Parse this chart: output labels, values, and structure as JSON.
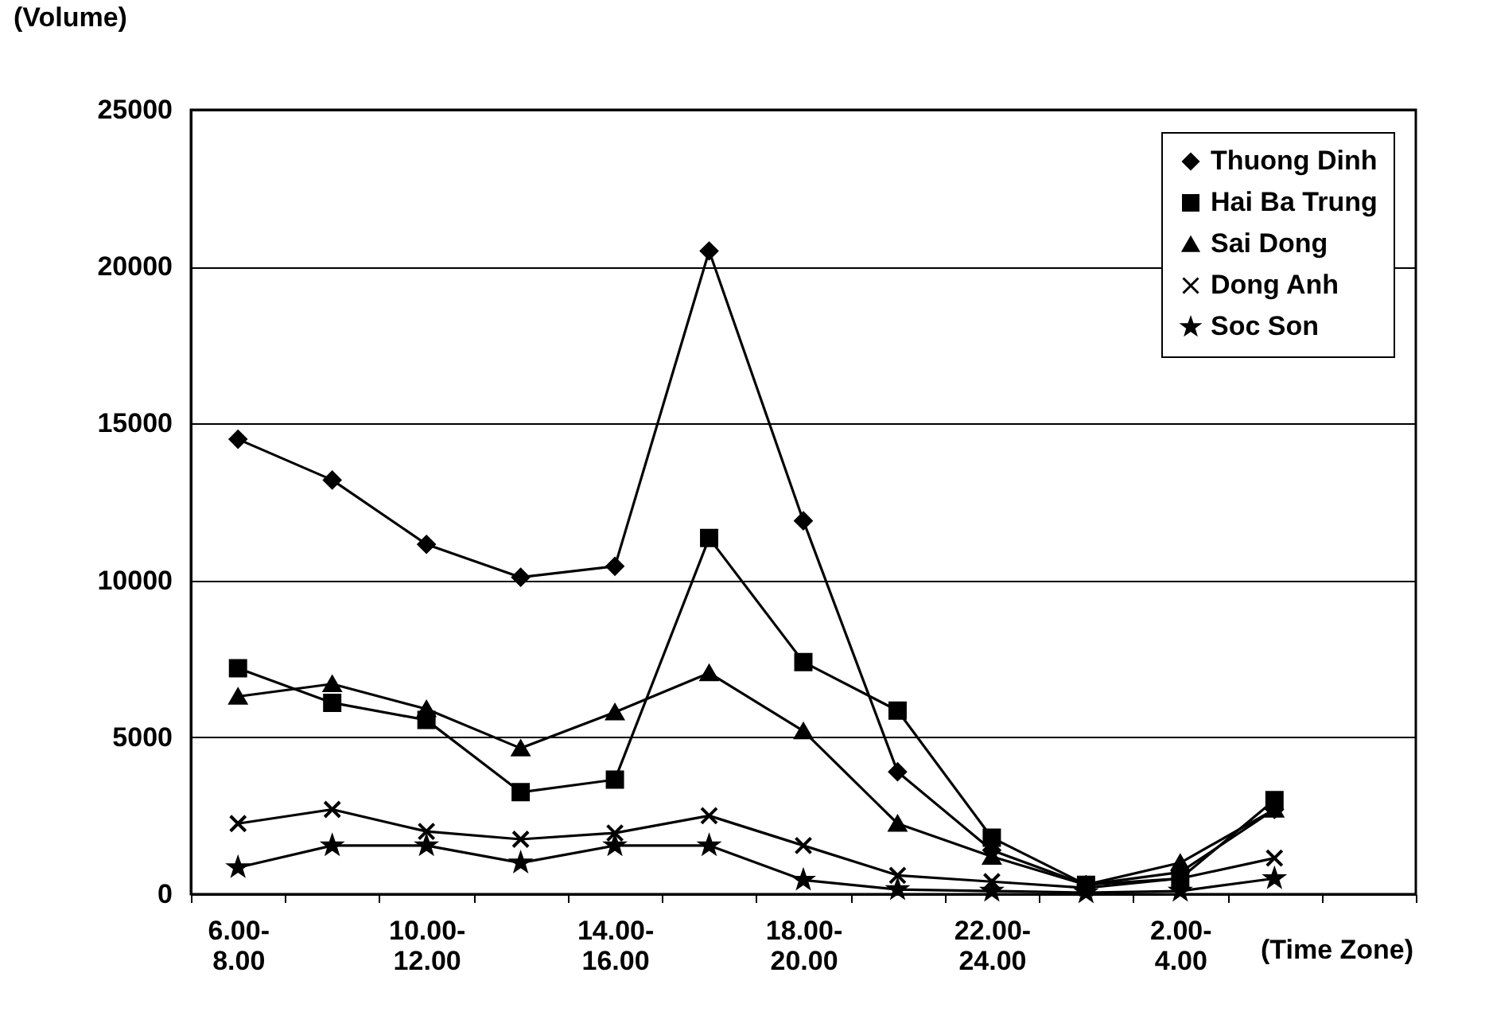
{
  "chart_data": {
    "type": "line",
    "xlabel": "(Time Zone)",
    "ylabel": "(Volume)",
    "categories": [
      "6.00-\n8.00",
      null,
      "10.00-\n12.00",
      null,
      "14.00-\n16.00",
      null,
      "18.00-\n20.00",
      null,
      "22.00-\n24.00",
      null,
      "2.00-\n4.00",
      null,
      null
    ],
    "series": [
      {
        "name": "Thuong Dinh",
        "color": "#000000",
        "marker": "diamond",
        "values": [
          14500,
          13200,
          11150,
          10100,
          10450,
          20500,
          11900,
          3900,
          1400,
          300,
          700,
          2700,
          null
        ]
      },
      {
        "name": "Hai Ba Trung",
        "color": "#000000",
        "marker": "square",
        "values": [
          7200,
          6100,
          5550,
          3250,
          3650,
          11350,
          7400,
          5850,
          1800,
          300,
          500,
          3000,
          null
        ]
      },
      {
        "name": "Sai Dong",
        "color": "#000000",
        "marker": "triangle",
        "values": [
          6300,
          6700,
          5900,
          4650,
          5800,
          7050,
          5200,
          2250,
          1200,
          300,
          1000,
          2700,
          null
        ]
      },
      {
        "name": "Dong Anh",
        "color": "#000000",
        "marker": "cross",
        "values": [
          2250,
          2700,
          2000,
          1750,
          1950,
          2500,
          1550,
          600,
          400,
          200,
          500,
          1150,
          null
        ]
      },
      {
        "name": "Soc Son",
        "color": "#000000",
        "marker": "star",
        "values": [
          850,
          1550,
          1550,
          1000,
          1550,
          1550,
          450,
          150,
          100,
          50,
          100,
          500,
          null
        ]
      }
    ],
    "ylim": [
      0,
      25000
    ],
    "yticks": [
      0,
      5000,
      10000,
      15000,
      20000,
      25000
    ],
    "grid": "y",
    "legend": "top right",
    "line_style": "solid"
  }
}
